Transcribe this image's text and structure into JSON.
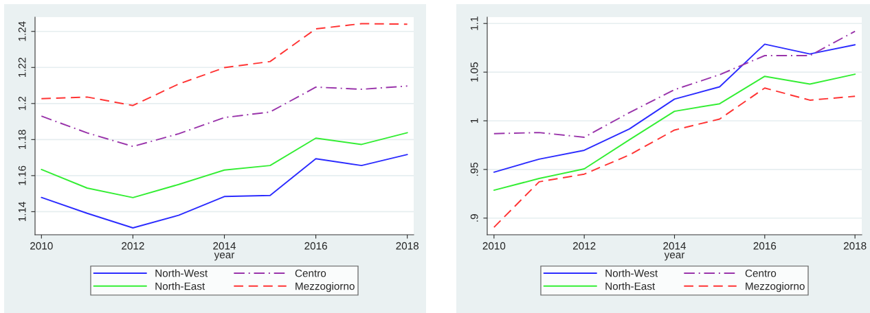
{
  "chart_data": [
    {
      "type": "line",
      "xlabel": "year",
      "x": [
        2010,
        2011,
        2012,
        2013,
        2014,
        2015,
        2016,
        2017,
        2018
      ],
      "xlim": [
        2009.86,
        2018.14
      ],
      "xticks": [
        2010,
        2012,
        2014,
        2016,
        2018
      ],
      "ylim": [
        1.1272,
        1.2479
      ],
      "yticks": [
        1.14,
        1.16,
        1.18,
        1.2,
        1.22,
        1.24
      ],
      "grid": "y",
      "legend": "bottom",
      "series": [
        {
          "name": "North-West",
          "color": "#2b2bff",
          "line_style": "solid",
          "values": [
            1.1479,
            1.1391,
            1.131,
            1.138,
            1.1484,
            1.149,
            1.1694,
            1.1656,
            1.1717
          ]
        },
        {
          "name": "North-East",
          "color": "#33ee33",
          "line_style": "solid",
          "values": [
            1.1634,
            1.1531,
            1.1478,
            1.1551,
            1.1631,
            1.1656,
            1.1808,
            1.1773,
            1.1838
          ]
        },
        {
          "name": "Centro",
          "color": "#9933aa",
          "line_style": "dashdot",
          "values": [
            1.193,
            1.1837,
            1.1762,
            1.1832,
            1.1922,
            1.1953,
            1.2091,
            1.2079,
            1.2097
          ]
        },
        {
          "name": "Mezzogiorno",
          "color": "#ff3333",
          "line_style": "dashed",
          "values": [
            1.2027,
            1.2036,
            1.1989,
            1.2108,
            1.2199,
            1.2233,
            1.2414,
            1.2443,
            1.244
          ]
        }
      ]
    },
    {
      "type": "line",
      "xlabel": "year",
      "x": [
        2010,
        2011,
        2012,
        2013,
        2014,
        2015,
        2016,
        2017,
        2018
      ],
      "xlim": [
        2009.85,
        2018.15
      ],
      "xticks": [
        2010,
        2012,
        2014,
        2016,
        2018
      ],
      "ylim": [
        0.8829,
        1.1065
      ],
      "yticks": [
        {
          "value": 0.9,
          "label": ".9"
        },
        {
          "value": 0.95,
          "label": ".95"
        },
        1,
        1.05,
        1.1
      ],
      "grid": "y",
      "legend": "bottom",
      "series": [
        {
          "name": "North-West",
          "color": "#2b2bff",
          "line_style": "solid",
          "values": [
            0.9472,
            0.9606,
            0.9697,
            0.9916,
            1.0223,
            1.0349,
            1.0787,
            1.0687,
            1.0781
          ]
        },
        {
          "name": "North-East",
          "color": "#33ee33",
          "line_style": "solid",
          "values": [
            0.9287,
            0.9407,
            0.9506,
            0.9805,
            1.0098,
            1.0175,
            1.0457,
            1.0377,
            1.0479
          ]
        },
        {
          "name": "Centro",
          "color": "#9933aa",
          "line_style": "dashdot",
          "values": [
            0.9868,
            0.9879,
            0.9831,
            1.0084,
            1.032,
            1.0474,
            1.067,
            1.067,
            1.092
          ]
        },
        {
          "name": "Mezzogiorno",
          "color": "#ff3333",
          "line_style": "dashed",
          "values": [
            0.8906,
            0.9373,
            0.9452,
            0.9649,
            0.9905,
            1.0018,
            1.0337,
            1.0212,
            1.0252
          ]
        }
      ]
    }
  ]
}
